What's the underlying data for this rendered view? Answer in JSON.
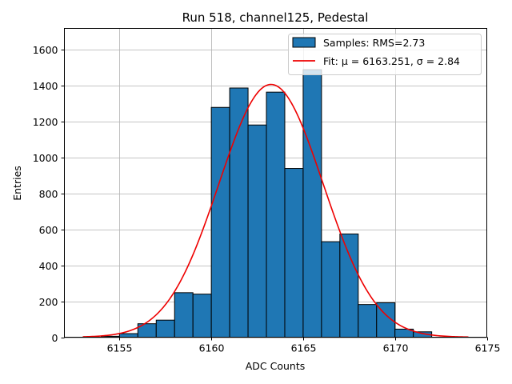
{
  "chart_data": {
    "type": "bar",
    "title": "Run 518, channel125, Pedestal",
    "xlabel": "ADC Counts",
    "ylabel": "Entries",
    "xlim": [
      6152,
      6175
    ],
    "ylim": [
      0,
      1720
    ],
    "xticks": [
      "6155",
      "6160",
      "6165",
      "6170",
      "6175"
    ],
    "xtick_values": [
      6155,
      6160,
      6165,
      6170,
      6175
    ],
    "yticks": [
      "0",
      "200",
      "400",
      "600",
      "800",
      "1000",
      "1200",
      "1400",
      "1600"
    ],
    "ytick_values": [
      0,
      200,
      400,
      600,
      800,
      1000,
      1200,
      1400,
      1600
    ],
    "grid": true,
    "legend_position": "top-right",
    "bar_color": "#1f77b4",
    "fit_color": "#ee0000",
    "histogram": {
      "name": "Samples: RMS=2.73",
      "bin_edges": [
        6154,
        6155,
        6156,
        6157,
        6158,
        6159,
        6160,
        6161,
        6162,
        6163,
        6164,
        6165,
        6166,
        6167,
        6168,
        6169,
        6170,
        6171,
        6172
      ],
      "values": [
        5,
        20,
        75,
        95,
        248,
        240,
        1280,
        1388,
        1182,
        1365,
        940,
        1490,
        532,
        575,
        182,
        192,
        45,
        30
      ]
    },
    "fit": {
      "name": "Fit: μ = 6163.251, σ = 2.84",
      "type": "gaussian",
      "amplitude": 1408,
      "mu": 6163.251,
      "sigma": 2.84,
      "x_range": [
        6153,
        6174
      ]
    }
  }
}
